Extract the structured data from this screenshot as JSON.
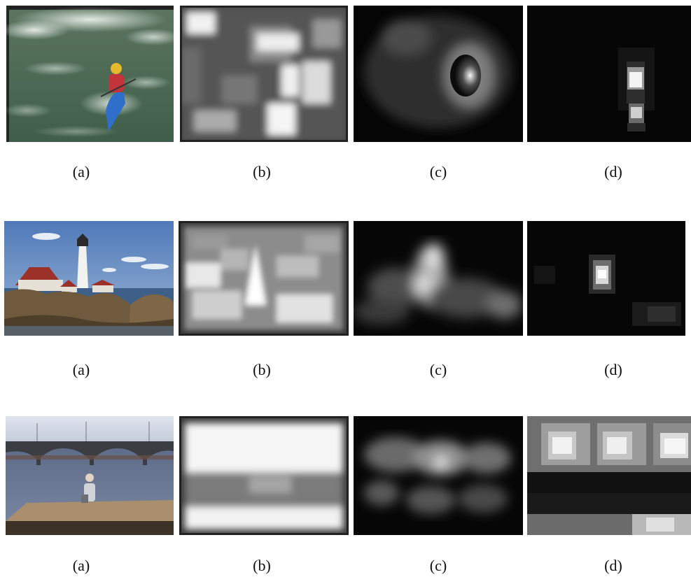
{
  "figure": {
    "rows": [
      {
        "id": "kayak",
        "captions": [
          "(a)",
          "(b)",
          "(c)",
          "(d)"
        ]
      },
      {
        "id": "lighthouse",
        "captions": [
          "(a)",
          "(b)",
          "(c)",
          "(d)"
        ]
      },
      {
        "id": "bridge",
        "captions": [
          "(a)",
          "(b)",
          "(c)",
          "(d)"
        ]
      }
    ]
  }
}
